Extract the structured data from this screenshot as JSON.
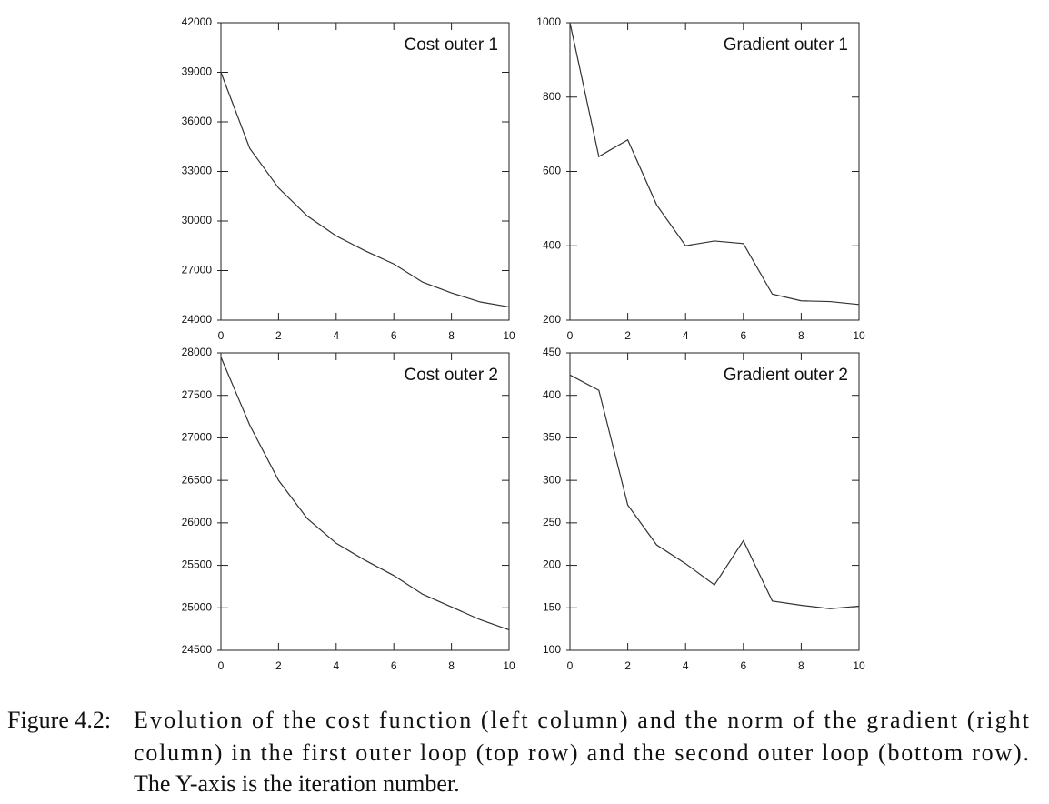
{
  "chart_data": [
    {
      "type": "line",
      "title": "Cost outer 1",
      "color": "#333333",
      "x": [
        0,
        1,
        2,
        3,
        4,
        5,
        6,
        7,
        8,
        9,
        10
      ],
      "values": [
        39000,
        34400,
        32000,
        30300,
        29100,
        28200,
        27400,
        26300,
        25650,
        25100,
        24800
      ],
      "xlim": [
        0,
        10
      ],
      "xticks": [
        0,
        2,
        4,
        6,
        8,
        10
      ],
      "ylim": [
        24000,
        42000
      ],
      "yticks": [
        24000,
        27000,
        30000,
        33000,
        36000,
        39000,
        42000
      ]
    },
    {
      "type": "line",
      "title": "Gradient outer 1",
      "color": "#333333",
      "x": [
        0,
        1,
        2,
        3,
        4,
        5,
        6,
        7,
        8,
        9,
        10
      ],
      "values": [
        1000,
        640,
        685,
        510,
        400,
        413,
        406,
        270,
        252,
        250,
        242
      ],
      "xlim": [
        0,
        10
      ],
      "xticks": [
        0,
        2,
        4,
        6,
        8,
        10
      ],
      "ylim": [
        200,
        1000
      ],
      "yticks": [
        200,
        400,
        600,
        800,
        1000
      ]
    },
    {
      "type": "line",
      "title": "Cost outer 2",
      "color": "#333333",
      "x": [
        0,
        1,
        2,
        3,
        4,
        5,
        6,
        7,
        8,
        9,
        10
      ],
      "values": [
        27950,
        27150,
        26500,
        26050,
        25760,
        25560,
        25380,
        25160,
        25010,
        24860,
        24740
      ],
      "xlim": [
        0,
        10
      ],
      "xticks": [
        0,
        2,
        4,
        6,
        8,
        10
      ],
      "ylim": [
        24500,
        28000
      ],
      "yticks": [
        24500,
        25000,
        25500,
        26000,
        26500,
        27000,
        27500,
        28000
      ]
    },
    {
      "type": "line",
      "title": "Gradient outer 2",
      "color": "#333333",
      "x": [
        0,
        1,
        2,
        3,
        4,
        5,
        6,
        7,
        8,
        9,
        10
      ],
      "values": [
        424,
        406,
        271,
        224,
        202,
        177,
        229,
        158,
        153,
        149,
        152
      ],
      "xlim": [
        0,
        10
      ],
      "xticks": [
        0,
        2,
        4,
        6,
        8,
        10
      ],
      "ylim": [
        100,
        450
      ],
      "yticks": [
        100,
        150,
        200,
        250,
        300,
        350,
        400,
        450
      ]
    }
  ],
  "caption": {
    "label": "Figure 4.2:",
    "lines": [
      "Evolution of the cost function (left column) and the norm of the gradient (right",
      "column) in the first outer loop (top row) and the second outer loop (bottom row).",
      "The Y-axis is the iteration number."
    ]
  }
}
